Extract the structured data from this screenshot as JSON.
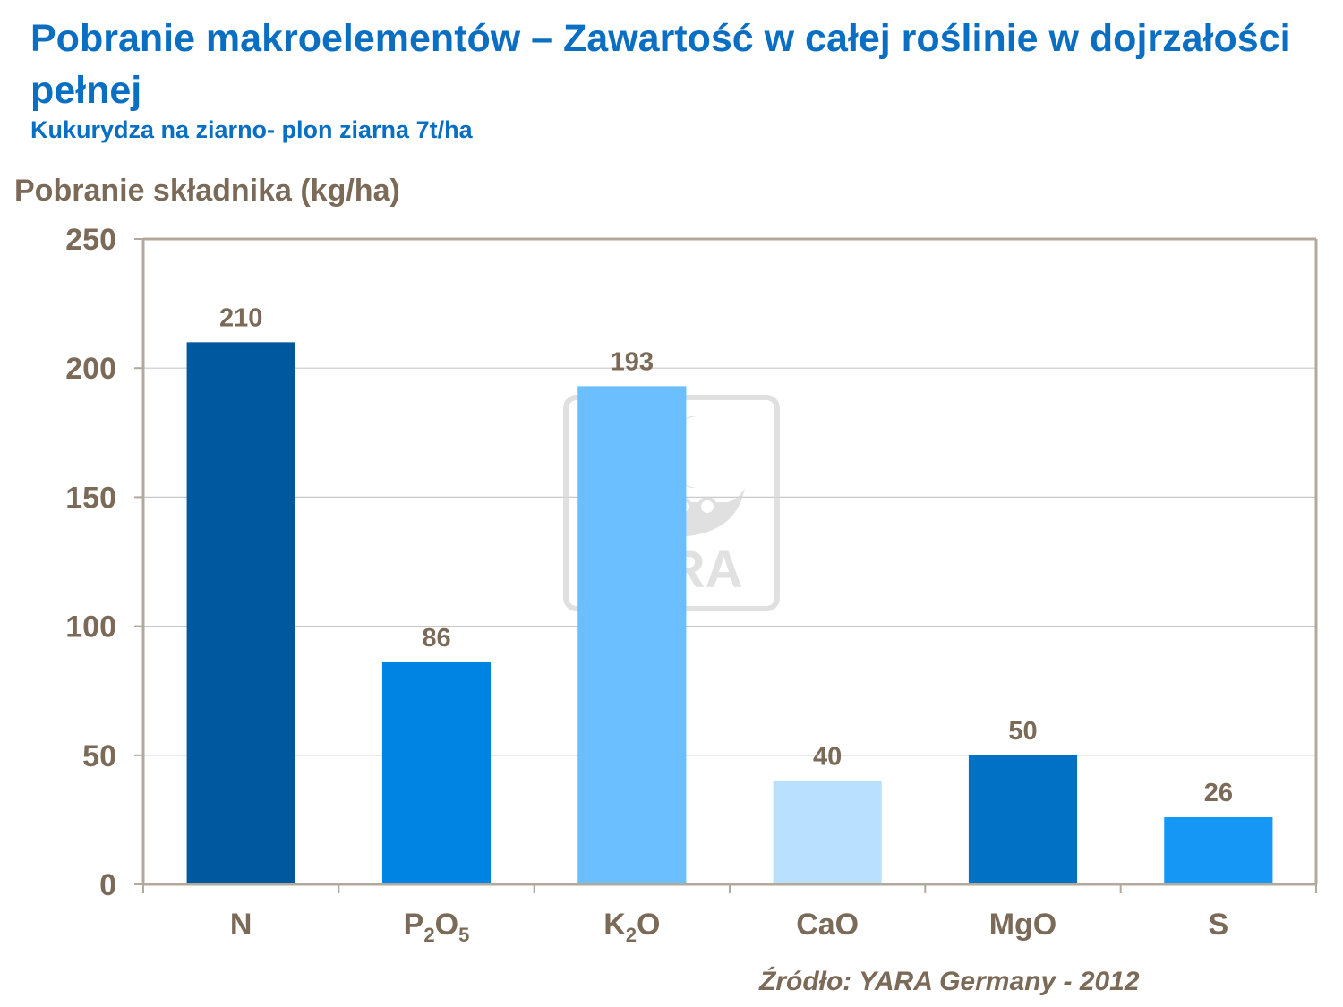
{
  "header": {
    "title": "Pobranie makroelementów – Zawartość w całej roślinie w dojrzałości pełnej",
    "subtitle": "Kukurydza na ziarno- plon ziarna 7t/ha"
  },
  "watermark": {
    "text": "YARA",
    "icon": "yara-viking-ship-logo-icon"
  },
  "source": "Źródło: YARA Germany - 2012",
  "chart_data": {
    "type": "bar",
    "title": "",
    "xlabel": "",
    "ylabel": "Pobranie składnika (kg/ha)",
    "ylim": [
      0,
      250
    ],
    "yticks": [
      0,
      50,
      100,
      150,
      200,
      250
    ],
    "grid": true,
    "legend": "none",
    "categories": [
      {
        "base": "N",
        "parts": [
          {
            "t": "N",
            "sub": false
          }
        ]
      },
      {
        "base": "P2O5",
        "parts": [
          {
            "t": "P",
            "sub": false
          },
          {
            "t": "2",
            "sub": true
          },
          {
            "t": "O",
            "sub": false
          },
          {
            "t": "5",
            "sub": true
          }
        ]
      },
      {
        "base": "K2O",
        "parts": [
          {
            "t": "K",
            "sub": false
          },
          {
            "t": "2",
            "sub": true
          },
          {
            "t": "O",
            "sub": false
          }
        ]
      },
      {
        "base": "CaO",
        "parts": [
          {
            "t": "CaO",
            "sub": false
          }
        ]
      },
      {
        "base": "MgO",
        "parts": [
          {
            "t": "MgO",
            "sub": false
          }
        ]
      },
      {
        "base": "S",
        "parts": [
          {
            "t": "S",
            "sub": false
          }
        ]
      }
    ],
    "values": [
      210,
      86,
      193,
      40,
      50,
      26
    ],
    "data_labels": [
      "210",
      "86",
      "193",
      "40",
      "50",
      "26"
    ],
    "colors": [
      "#00599e",
      "#0084e3",
      "#6bbfff",
      "#b9e0ff",
      "#0071c4",
      "#1598f5"
    ],
    "colors_meta": {
      "axis": "#b3a89c",
      "grid": "#c8c8c8",
      "text": "#7b6a58"
    }
  }
}
